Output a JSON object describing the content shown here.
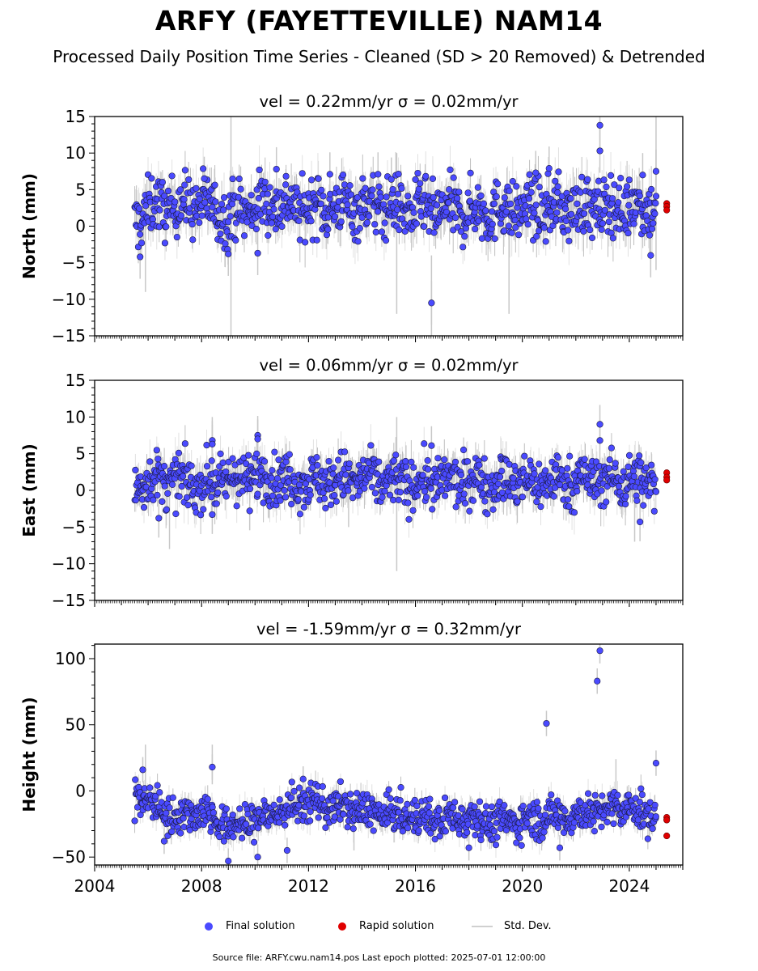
{
  "page": {
    "title": "ARFY (FAYETTEVILLE) NAM14",
    "subtitle": "Processed Daily Position Time Series - Cleaned (SD > 20 Removed) & Detrended",
    "footer": "Source file: ARFY.cwu.nam14.pos  Last epoch plotted: 2025-07-01 12:00:00"
  },
  "legend": [
    {
      "label": "Final solution",
      "color": "#4a4aff",
      "kind": "dot"
    },
    {
      "label": "Rapid solution",
      "color": "#e00000",
      "kind": "dot"
    },
    {
      "label": "Std. Dev.",
      "color": "#d0d0d0",
      "kind": "line"
    }
  ],
  "colors": {
    "final": "#4a4aff",
    "rapid": "#e00000",
    "stddev": "#c8c8c8",
    "stddev_dark": "#8a8a8a",
    "edge": "#1a1a40"
  },
  "chart_data": [
    {
      "type": "scatter",
      "title": "vel = 0.22mm/yr   σ = 0.02mm/yr",
      "ylabel": "North (mm)",
      "xlim": [
        2004,
        2026
      ],
      "ylim": [
        -15,
        15
      ],
      "yticks": [
        -15,
        -10,
        -5,
        0,
        5,
        10,
        15
      ],
      "xtick_labels": [],
      "grid": false,
      "final_solution": {
        "x_range": [
          2005.5,
          2025.0
        ],
        "baseline": [
          [
            2005.5,
            0.5
          ],
          [
            2006,
            2.5
          ],
          [
            2008,
            3.0
          ],
          [
            2009,
            1.5
          ],
          [
            2010.5,
            3.2
          ],
          [
            2012,
            2.5
          ],
          [
            2014,
            2.8
          ],
          [
            2016,
            2.2
          ],
          [
            2018,
            2.0
          ],
          [
            2020,
            2.3
          ],
          [
            2022,
            2.5
          ],
          [
            2025,
            2.8
          ]
        ],
        "spread": 2.0,
        "outliers": [
          [
            2022.9,
            13.8
          ],
          [
            2022.9,
            10.3
          ],
          [
            2016.6,
            -10.5
          ],
          [
            2005.7,
            -4.2
          ],
          [
            2009.0,
            -3.8
          ],
          [
            2010.1,
            -3.7
          ],
          [
            2024.8,
            -4.0
          ],
          [
            2010.8,
            7.8
          ],
          [
            2021.0,
            7.9
          ],
          [
            2020.5,
            7.3
          ],
          [
            2014.6,
            7.1
          ],
          [
            2012.8,
            7.1
          ],
          [
            2025.0,
            7.5
          ],
          [
            2008.1,
            6.5
          ],
          [
            2015.1,
            6.4
          ],
          [
            2024.5,
            7.0
          ]
        ]
      },
      "rapid_solution": [
        [
          2025.4,
          3.1
        ],
        [
          2025.4,
          2.7
        ],
        [
          2025.4,
          2.2
        ]
      ],
      "stddev_typical": 2.5,
      "stddev_spikes": [
        [
          2009.1,
          -15,
          15
        ],
        [
          2015.3,
          -12,
          10
        ],
        [
          2016.6,
          -15,
          -4
        ],
        [
          2019.5,
          -12,
          4
        ],
        [
          2025.0,
          -6,
          15
        ],
        [
          2005.9,
          -9,
          5
        ]
      ]
    },
    {
      "type": "scatter",
      "title": "vel = 0.06mm/yr   σ = 0.02mm/yr",
      "ylabel": "East (mm)",
      "xlim": [
        2004,
        2026
      ],
      "ylim": [
        -15,
        15
      ],
      "yticks": [
        -15,
        -10,
        -5,
        0,
        5,
        10,
        15
      ],
      "xtick_labels": [],
      "grid": false,
      "final_solution": {
        "x_range": [
          2005.5,
          2025.0
        ],
        "baseline": [
          [
            2005.5,
            0.5
          ],
          [
            2006,
            1.5
          ],
          [
            2008,
            0.8
          ],
          [
            2010,
            2.0
          ],
          [
            2012,
            1.2
          ],
          [
            2014,
            1.5
          ],
          [
            2016,
            1.0
          ],
          [
            2018,
            1.3
          ],
          [
            2020,
            1.0
          ],
          [
            2022,
            1.5
          ],
          [
            2025,
            1.2
          ]
        ],
        "spread": 1.7,
        "outliers": [
          [
            2022.9,
            9.0
          ],
          [
            2022.9,
            6.8
          ],
          [
            2008.4,
            6.8
          ],
          [
            2008.4,
            6.3
          ],
          [
            2010.1,
            7.5
          ],
          [
            2010.1,
            7.0
          ],
          [
            2016.6,
            6.1
          ],
          [
            2006.4,
            -3.8
          ],
          [
            2024.4,
            -4.3
          ],
          [
            2008.4,
            -3.3
          ],
          [
            2009.8,
            -2.8
          ]
        ]
      },
      "rapid_solution": [
        [
          2025.4,
          2.4
        ],
        [
          2025.4,
          1.8
        ],
        [
          2025.4,
          1.4
        ]
      ],
      "stddev_typical": 2.2,
      "stddev_spikes": [
        [
          2015.3,
          -11,
          10
        ],
        [
          2006.8,
          -8,
          2
        ],
        [
          2024.2,
          -7,
          2
        ],
        [
          2008.4,
          -3,
          10
        ],
        [
          2013.5,
          -5,
          5
        ]
      ]
    },
    {
      "type": "scatter",
      "title": "vel = -1.59mm/yr   σ = 0.32mm/yr",
      "ylabel": "Height (mm)",
      "xlim": [
        2004,
        2026
      ],
      "ylim": [
        -56,
        111
      ],
      "yticks": [
        -50,
        0,
        50,
        100
      ],
      "xtick_labels": [
        "2004",
        "2008",
        "2012",
        "2016",
        "2020",
        "2024"
      ],
      "grid": false,
      "final_solution": {
        "x_range": [
          2005.5,
          2025.0
        ],
        "baseline": [
          [
            2005.5,
            -2
          ],
          [
            2006,
            -8
          ],
          [
            2007,
            -20
          ],
          [
            2008,
            -15
          ],
          [
            2009,
            -28
          ],
          [
            2010,
            -22
          ],
          [
            2011,
            -15
          ],
          [
            2012,
            -8
          ],
          [
            2013,
            -12
          ],
          [
            2014,
            -15
          ],
          [
            2015,
            -18
          ],
          [
            2016,
            -20
          ],
          [
            2017,
            -22
          ],
          [
            2018,
            -18
          ],
          [
            2019,
            -25
          ],
          [
            2020,
            -22
          ],
          [
            2021,
            -20
          ],
          [
            2022,
            -18
          ],
          [
            2023,
            -15
          ],
          [
            2024,
            -13
          ],
          [
            2025,
            -20
          ]
        ],
        "spread": 7,
        "outliers": [
          [
            2022.9,
            106
          ],
          [
            2022.8,
            83
          ],
          [
            2020.9,
            51
          ],
          [
            2025.0,
            21
          ],
          [
            2008.4,
            18
          ],
          [
            2005.8,
            16
          ],
          [
            2011.8,
            9
          ],
          [
            2009.0,
            -53
          ],
          [
            2010.1,
            -50
          ],
          [
            2018.0,
            -43
          ],
          [
            2021.4,
            -43
          ],
          [
            2006.6,
            -38
          ],
          [
            2011.2,
            -45
          ]
        ]
      },
      "rapid_solution": [
        [
          2025.4,
          -20
        ],
        [
          2025.4,
          -22
        ],
        [
          2025.4,
          -34
        ]
      ],
      "stddev_typical": 8,
      "stddev_spikes": [
        [
          2005.9,
          -10,
          35
        ],
        [
          2008.4,
          5,
          35
        ],
        [
          2023.5,
          0,
          24
        ],
        [
          2013.7,
          -45,
          -10
        ]
      ]
    }
  ]
}
